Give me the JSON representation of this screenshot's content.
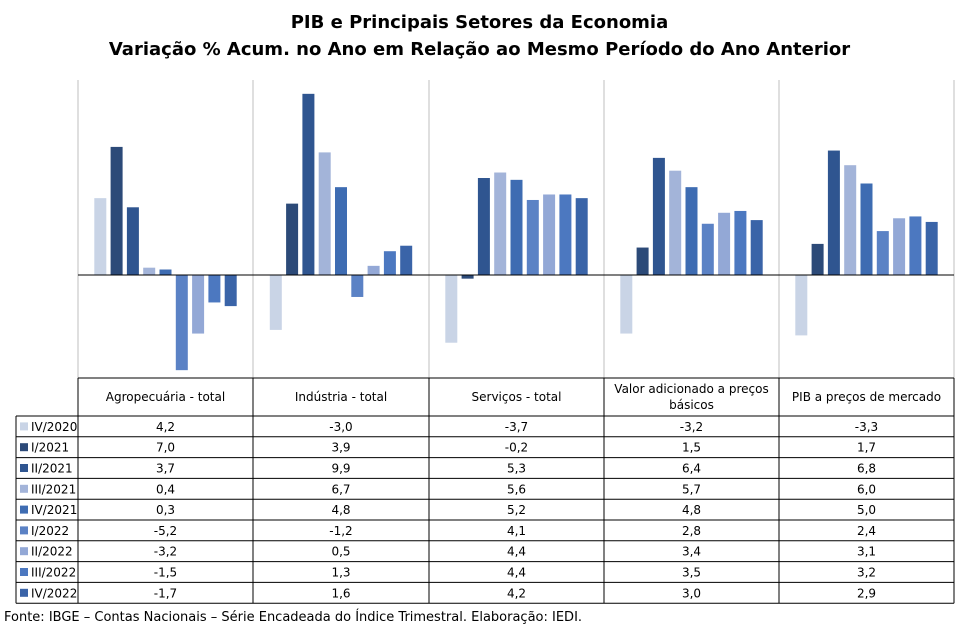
{
  "chart_data": {
    "type": "bar",
    "title": "PIB e Principais  Setores da Economia",
    "subtitle": "Variação  % Acum. no Ano em Relação ao Mesmo  Período do Ano Anterior",
    "categories": [
      "Agropecuária - total",
      "Indústria - total",
      "Serviços - total",
      "Valor adicionado a preços básicos",
      "PIB a preços de mercado"
    ],
    "series": [
      {
        "name": "IV/2020",
        "color": "#c9d4e6",
        "values": [
          4.2,
          -3.0,
          -3.7,
          -3.2,
          -3.3
        ],
        "labels": [
          "4,2",
          "-3,0",
          "-3,7",
          "-3,2",
          "-3,3"
        ]
      },
      {
        "name": "I/2021",
        "color": "#2c4a78",
        "values": [
          7.0,
          3.9,
          -0.2,
          1.5,
          1.7
        ],
        "labels": [
          "7,0",
          "3,9",
          "-0,2",
          "1,5",
          "1,7"
        ]
      },
      {
        "name": "II/2021",
        "color": "#2f5590",
        "values": [
          3.7,
          9.9,
          5.3,
          6.4,
          6.8
        ],
        "labels": [
          "3,7",
          "9,9",
          "5,3",
          "6,4",
          "6,8"
        ]
      },
      {
        "name": "III/2021",
        "color": "#a3b4d9",
        "values": [
          0.4,
          6.7,
          5.6,
          5.7,
          6.0
        ],
        "labels": [
          "0,4",
          "6,7",
          "5,6",
          "5,7",
          "6,0"
        ]
      },
      {
        "name": "IV/2021",
        "color": "#3e6cb2",
        "values": [
          0.3,
          4.8,
          5.2,
          4.8,
          5.0
        ],
        "labels": [
          "0,3",
          "4,8",
          "5,2",
          "4,8",
          "5,0"
        ]
      },
      {
        "name": "I/2022",
        "color": "#5b82c5",
        "values": [
          -5.2,
          -1.2,
          4.1,
          2.8,
          2.4
        ],
        "labels": [
          "-5,2",
          "-1,2",
          "4,1",
          "2,8",
          "2,4"
        ]
      },
      {
        "name": "II/2022",
        "color": "#93a8d6",
        "values": [
          -3.2,
          0.5,
          4.4,
          3.4,
          3.1
        ],
        "labels": [
          "-3,2",
          "0,5",
          "4,4",
          "3,4",
          "3,1"
        ]
      },
      {
        "name": "III/2022",
        "color": "#4c78c0",
        "values": [
          -1.5,
          1.3,
          4.4,
          3.5,
          3.2
        ],
        "labels": [
          "-1,5",
          "1,3",
          "4,4",
          "3,5",
          "3,2"
        ]
      },
      {
        "name": "IV/2022",
        "color": "#3a64a8",
        "values": [
          -1.7,
          1.6,
          4.2,
          3.0,
          2.9
        ],
        "labels": [
          "-1,7",
          "1,6",
          "4,2",
          "3,0",
          "2,9"
        ]
      }
    ],
    "grid": false,
    "legend": "data table below chart"
  },
  "source": "Fonte: IBGE – Contas Nacionais – Série Encadeada do Índice Trimestral. Elaboração: IEDI."
}
